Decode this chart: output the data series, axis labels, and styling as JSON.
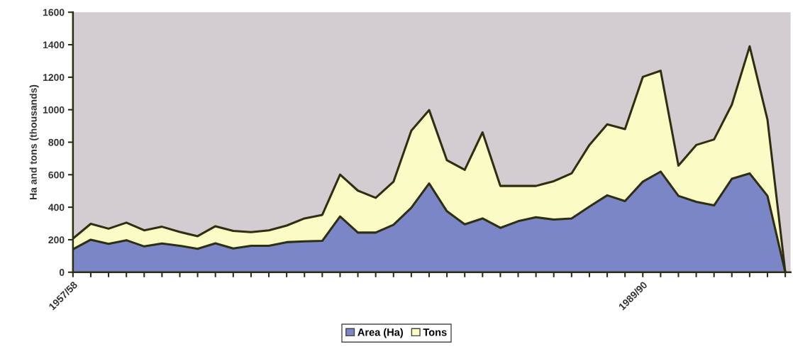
{
  "chart_data": {
    "type": "area",
    "stacked": true,
    "ylabel": "Ha and tons (thousands)",
    "categories": [
      "1957/58",
      null,
      null,
      null,
      null,
      null,
      null,
      null,
      null,
      null,
      null,
      null,
      null,
      null,
      null,
      null,
      null,
      null,
      null,
      null,
      null,
      null,
      null,
      null,
      null,
      null,
      null,
      null,
      null,
      null,
      null,
      null,
      "1989/90",
      null,
      null,
      null,
      null,
      null,
      null,
      null,
      null
    ],
    "series": [
      {
        "name": "Area (Ha)",
        "color": "#7b86c6",
        "values": [
          141,
          200,
          175,
          197,
          159,
          177,
          163,
          144,
          178,
          146,
          163,
          163,
          185,
          190,
          193,
          343,
          244,
          244,
          292,
          397,
          546,
          375,
          295,
          331,
          273,
          314,
          338,
          324,
          331,
          404,
          473,
          438,
          557,
          619,
          470,
          433,
          411,
          575,
          608,
          470,
          0
        ]
      },
      {
        "name": "Tons",
        "color": "#fbfbc6",
        "values": [
          66,
          98,
          93,
          108,
          99,
          103,
          85,
          78,
          105,
          108,
          84,
          95,
          102,
          141,
          160,
          258,
          258,
          214,
          265,
          474,
          452,
          314,
          335,
          530,
          258,
          217,
          193,
          236,
          277,
          379,
          437,
          443,
          645,
          621,
          186,
          350,
          406,
          456,
          782,
          469,
          0
        ]
      }
    ],
    "ylim": [
      0,
      1600
    ],
    "yticks": [
      0,
      200,
      400,
      600,
      800,
      1000,
      1200,
      1400,
      1600
    ],
    "legend": "bottom",
    "grid": false
  }
}
